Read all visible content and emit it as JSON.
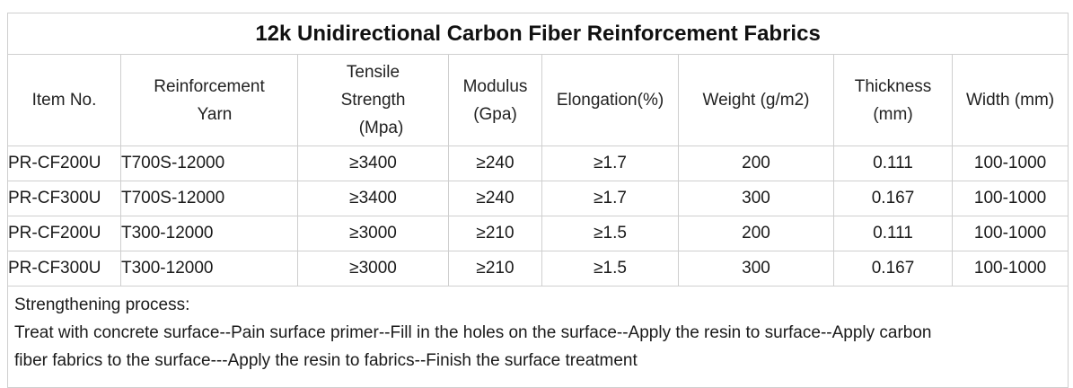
{
  "title": "12k Unidirectional Carbon Fiber Reinforcement Fabrics",
  "headers": {
    "item_no": [
      "Item No."
    ],
    "reinforcement_yarn": [
      "Reinforcement",
      "Yarn"
    ],
    "tensile_strength": [
      "Tensile",
      "Strength",
      "(Mpa)"
    ],
    "modulus": [
      "Modulus",
      "(Gpa)"
    ],
    "elongation": [
      "Elongation(%)"
    ],
    "weight": [
      "Weight (g/m2)"
    ],
    "thickness": [
      "Thickness",
      "(mm)"
    ],
    "width": [
      "Width (mm)"
    ]
  },
  "rows": [
    {
      "item_no": "PR-CF200U",
      "yarn": "T700S-12000",
      "tensile": "≥3400",
      "modulus": "≥240",
      "elongation": "≥1.7",
      "weight": "200",
      "thickness": "0.111",
      "width": "100-1000"
    },
    {
      "item_no": "PR-CF300U",
      "yarn": "T700S-12000",
      "tensile": "≥3400",
      "modulus": "≥240",
      "elongation": "≥1.7",
      "weight": "300",
      "thickness": "0.167",
      "width": "100-1000"
    },
    {
      "item_no": "PR-CF200U",
      "yarn": "T300-12000",
      "tensile": "≥3000",
      "modulus": "≥210",
      "elongation": "≥1.5",
      "weight": "200",
      "thickness": "0.111",
      "width": "100-1000"
    },
    {
      "item_no": "PR-CF300U",
      "yarn": "T300-12000",
      "tensile": "≥3000",
      "modulus": "≥210",
      "elongation": "≥1.5",
      "weight": "300",
      "thickness": "0.167",
      "width": "100-1000"
    }
  ],
  "process": {
    "heading": "Strengthening process:",
    "line1": "Treat with concrete surface--Pain surface primer--Fill in the holes on the surface--Apply the resin to surface--Apply carbon",
    "line2": "fiber fabrics to the surface---Apply the resin to fabrics--Finish the surface treatment"
  }
}
